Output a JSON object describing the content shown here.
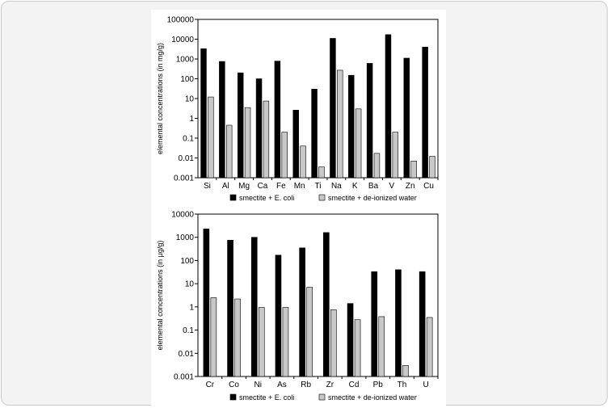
{
  "chart_data": [
    {
      "type": "bar",
      "scale": "log",
      "ylim": [
        0.001,
        100000
      ],
      "ytick_labels": [
        "0.001",
        "0.01",
        "0.1",
        "1",
        "10",
        "100",
        "1000",
        "10000",
        "100000"
      ],
      "ylabel": "elemental concentrations (in mg/g)",
      "categories": [
        "Si",
        "Al",
        "Mg",
        "Ca",
        "Fe",
        "Mn",
        "Ti",
        "Na",
        "K",
        "Ba",
        "V",
        "Zn",
        "Cu"
      ],
      "series": [
        {
          "name": "smectite + E. coli",
          "color": "#000000",
          "values": [
            3300,
            750,
            200,
            100,
            780,
            2.6,
            30,
            11000,
            150,
            600,
            17000,
            1100,
            4000
          ]
        },
        {
          "name": "smectite + de-ionized water",
          "color": "#c8c8c8",
          "values": [
            12,
            0.45,
            3.5,
            7.5,
            0.2,
            0.04,
            0.0035,
            270,
            3,
            0.017,
            0.2,
            0.007,
            0.012
          ]
        }
      ],
      "legend": "bottom",
      "grid": false
    },
    {
      "type": "bar",
      "scale": "log",
      "ylim": [
        0.001,
        10000
      ],
      "ytick_labels": [
        "0.001",
        "0.01",
        "0.1",
        "1",
        "10",
        "100",
        "1000",
        "10000"
      ],
      "ylabel": "elemental concentrations (in μg/g)",
      "categories": [
        "Cr",
        "Co",
        "Ni",
        "As",
        "Rb",
        "Zr",
        "Cd",
        "Pb",
        "Th",
        "U"
      ],
      "series": [
        {
          "name": "smectite + E. coli",
          "color": "#000000",
          "values": [
            2300,
            750,
            1000,
            170,
            350,
            1600,
            1.4,
            33,
            40,
            33
          ]
        },
        {
          "name": "smectite + de-ionized water",
          "color": "#c8c8c8",
          "values": [
            2.5,
            2.2,
            0.95,
            0.95,
            7,
            0.75,
            0.28,
            0.38,
            0.003,
            0.35
          ]
        }
      ],
      "legend": "bottom",
      "grid": false
    }
  ]
}
